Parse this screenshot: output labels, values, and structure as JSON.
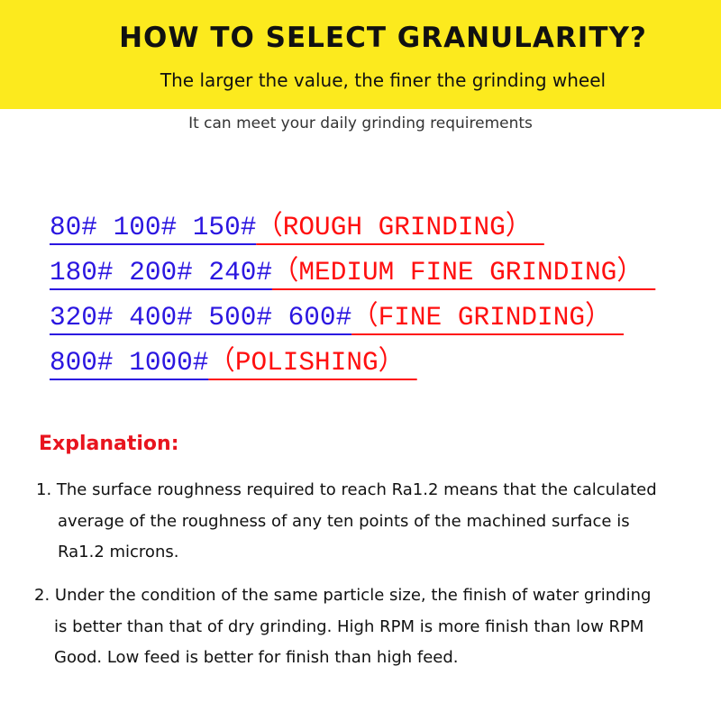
{
  "header": {
    "title": "HOW TO SELECT GRANULARITY?",
    "subtitle": "The larger the value, the finer the grinding wheel",
    "background_color": "#fcea1e"
  },
  "tagline": "It can meet your daily grinding requirements",
  "grit_rows": [
    {
      "grits": "80# 100# 150#",
      "description": "（ROUGH GRINDING）"
    },
    {
      "grits": "180# 200# 240#",
      "description": "（MEDIUM FINE GRINDING）"
    },
    {
      "grits": "320# 400# 500# 600#",
      "description": "（FINE GRINDING）"
    },
    {
      "grits": "800# 1000#",
      "description": "（POLISHING）"
    }
  ],
  "colors": {
    "grit": "#2b16e0",
    "description": "#ff0f0f",
    "explanation_heading": "#e8141e"
  },
  "explanation": {
    "heading": "Explanation:",
    "items": [
      {
        "line1": "1. The surface roughness required to reach Ra1.2 means that the calculated",
        "line2": "average of the roughness of any ten points of the machined surface is",
        "line3": "Ra1.2 microns."
      },
      {
        "line1": "2. Under the condition of the same particle size, the finish of water grinding",
        "line2": "is better than that of dry grinding. High RPM is more finish than low RPM",
        "line3": "Good. Low feed is better for finish than high feed."
      }
    ]
  }
}
